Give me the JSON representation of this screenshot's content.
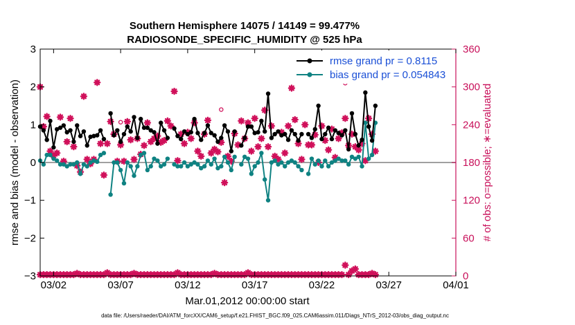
{
  "chart_data": {
    "type": "line",
    "title": "Southern Hemisphere 14075 / 14149 = 99.477%",
    "subtitle": "RADIOSONDE_SPECIFIC_HUMIDITY @ 525 hPa",
    "xlabel": "Mar.01,2012 00:00:00 start",
    "ylabel": "rmse and bias (model - observation)",
    "ylabel_right": "# of obs: o=possible; ∗=evaluated",
    "footer": "data file: /Users/raeder/DAI/ATM_forcXX/CAM6_setup/f.e21.FHIST_BGC.f09_025.CAM6assim.011/Diags_NTrS_2012-03/obs_diag_output.nc",
    "xlim": [
      1,
      32
    ],
    "ylim": [
      -3,
      3
    ],
    "ylim_right": [
      0,
      360
    ],
    "x_ticks": [
      2,
      7,
      12,
      17,
      22,
      27,
      32
    ],
    "x_tick_labels": [
      "03/02",
      "03/07",
      "03/12",
      "03/17",
      "03/22",
      "03/27",
      "04/01"
    ],
    "y_ticks": [
      -3,
      -2,
      -1,
      0,
      1,
      2,
      3
    ],
    "y_tick_labels": [
      "−3",
      "−2",
      "−1",
      "0",
      "1",
      "2",
      "3"
    ],
    "y_right_ticks": [
      0,
      60,
      120,
      180,
      240,
      300,
      360
    ],
    "y_right_tick_labels": [
      "0",
      "60",
      "120",
      "180",
      "240",
      "300",
      "360"
    ],
    "x_step": 0.25,
    "x_start": 1.0,
    "series": [
      {
        "name": "rmse",
        "legend": "rmse grand pr = 0.8115",
        "color": "#000000",
        "values": [
          0.95,
          0.85,
          0.6,
          1.1,
          0.4,
          0.88,
          0.92,
          0.98,
          0.8,
          0.85,
          0.55,
          0.98,
          0.7,
          0.82,
          0.45,
          0.68,
          0.7,
          0.72,
          0.85,
          0.62,
          0.75,
          1.3,
          0.72,
          0.85,
          0.55,
          0.75,
          0.95,
          0.82,
          1.2,
          0.65,
          1.15,
          0.92,
          0.92,
          0.85,
          0.8,
          0.5,
          1.05,
          0.85,
          0.65,
          0.85,
          0.9,
          0.7,
          0.62,
          0.82,
          0.75,
          0.8,
          1.15,
          0.78,
          0.6,
          0.78,
          0.98,
          0.78,
          0.72,
          0.55,
          0.65,
          0.98,
          0.82,
          0.3,
          0.82,
          0.65,
          0.45,
          0.65,
          0.95,
          0.95,
          0.78,
          0.8,
          1.1,
          0.82,
          1.82,
          0.65,
          0.75,
          0.82,
          0.72,
          0.75,
          0.6,
          0.85,
          0.75,
          0.58,
          0.75,
          0.98,
          0.75,
          0.65,
          0.88,
          1.5,
          0.62,
          0.75,
          0.92,
          0.62,
          0.85,
          0.78,
          0.72,
          0.85,
          0.35,
          1.3,
          0.75,
          0.45,
          0.6,
          1.85,
          0.95,
          0.58,
          1.5
        ],
        "na_indices": [
          20,
          39,
          59,
          79
        ]
      },
      {
        "name": "bias",
        "legend": "bias grand pr = 0.054843",
        "color": "#0f8282",
        "values": [
          0.05,
          -0.05,
          0.2,
          0.2,
          0.1,
          0.05,
          -0.05,
          -0.05,
          -0.1,
          -0.05,
          -0.05,
          0.0,
          -0.3,
          -0.05,
          -0.1,
          0.0,
          0.05,
          0.02,
          0.2,
          0.25,
          -0.1,
          -0.85,
          0.0,
          0.0,
          -0.2,
          -0.55,
          0.0,
          -0.1,
          -0.35,
          -0.1,
          0.2,
          0.25,
          -0.2,
          -0.1,
          0.1,
          0.05,
          -0.1,
          -0.05,
          0.1,
          0.05,
          -0.05,
          -0.1,
          -0.1,
          0.0,
          -0.1,
          -0.05,
          0.0,
          -0.05,
          -0.15,
          -0.1,
          0.05,
          -0.05,
          0.1,
          -0.15,
          -0.1,
          0.15,
          0.0,
          -0.2,
          0.15,
          0.1,
          -0.05,
          0.15,
          0.1,
          -0.3,
          -0.1,
          0.0,
          0.25,
          -0.45,
          -1.0,
          0.0,
          0.05,
          -0.05,
          0.0,
          -0.1,
          0.0,
          0.05,
          0.0,
          -0.1,
          -0.2,
          0.05,
          -0.3,
          0.1,
          -0.05,
          0.05,
          -0.1,
          0.05,
          -0.1,
          0.0,
          0.05,
          0.1,
          0.05,
          0.05,
          -0.05,
          0.15,
          0.1,
          0.15,
          -0.1,
          1.05,
          0.1,
          0.2,
          1.05
        ],
        "na_indices": [
          20,
          39,
          59,
          79
        ]
      }
    ],
    "obs_evaluated_top": [
      300,
      237,
      253,
      198,
      191,
      195,
      252,
      182,
      213,
      250,
      205,
      175,
      165,
      285,
      185,
      178,
      185,
      307,
      210,
      160,
      210,
      245,
      225,
      182,
      208,
      182,
      245,
      216,
      185,
      218,
      193,
      207,
      243,
      213,
      218,
      222,
      212,
      215,
      246,
      238,
      293,
      183,
      225,
      210,
      228,
      218,
      243,
      198,
      190,
      225,
      247,
      195,
      201,
      197,
      212,
      148,
      190,
      182,
      226,
      208,
      246,
      218,
      243,
      198,
      250,
      205,
      218,
      263,
      205,
      238,
      190,
      185,
      228,
      195,
      238,
      298,
      248,
      210,
      185,
      240,
      208,
      208,
      224,
      180,
      238,
      215,
      200,
      233,
      188,
      218,
      227,
      250,
      207,
      225,
      205,
      200,
      210,
      183,
      250,
      225,
      198
    ],
    "obs_possible_extra": [
      {
        "x": 7.0,
        "v": 244
      },
      {
        "x": 14.5,
        "v": 264
      },
      {
        "x": 23.75,
        "v": 306
      }
    ],
    "obs_bottom_baseline": 2,
    "obs_bottom_bumps": [
      {
        "i": 11,
        "v": 4
      },
      {
        "i": 20,
        "v": 5
      },
      {
        "i": 28,
        "v": 4
      },
      {
        "i": 41,
        "v": 5
      },
      {
        "i": 52,
        "v": 4
      },
      {
        "i": 62,
        "v": 5
      },
      {
        "i": 91,
        "v": 17
      },
      {
        "i": 93,
        "v": 8
      },
      {
        "i": 94,
        "v": 11
      },
      {
        "i": 99,
        "v": 4
      }
    ],
    "colors": {
      "rmse": "#000000",
      "bias": "#0f8282",
      "obs": "#d0105a",
      "zero_line": "#a0a0a0",
      "legend_text": "#1a4fd6",
      "right_axis": "#c8105a"
    }
  }
}
